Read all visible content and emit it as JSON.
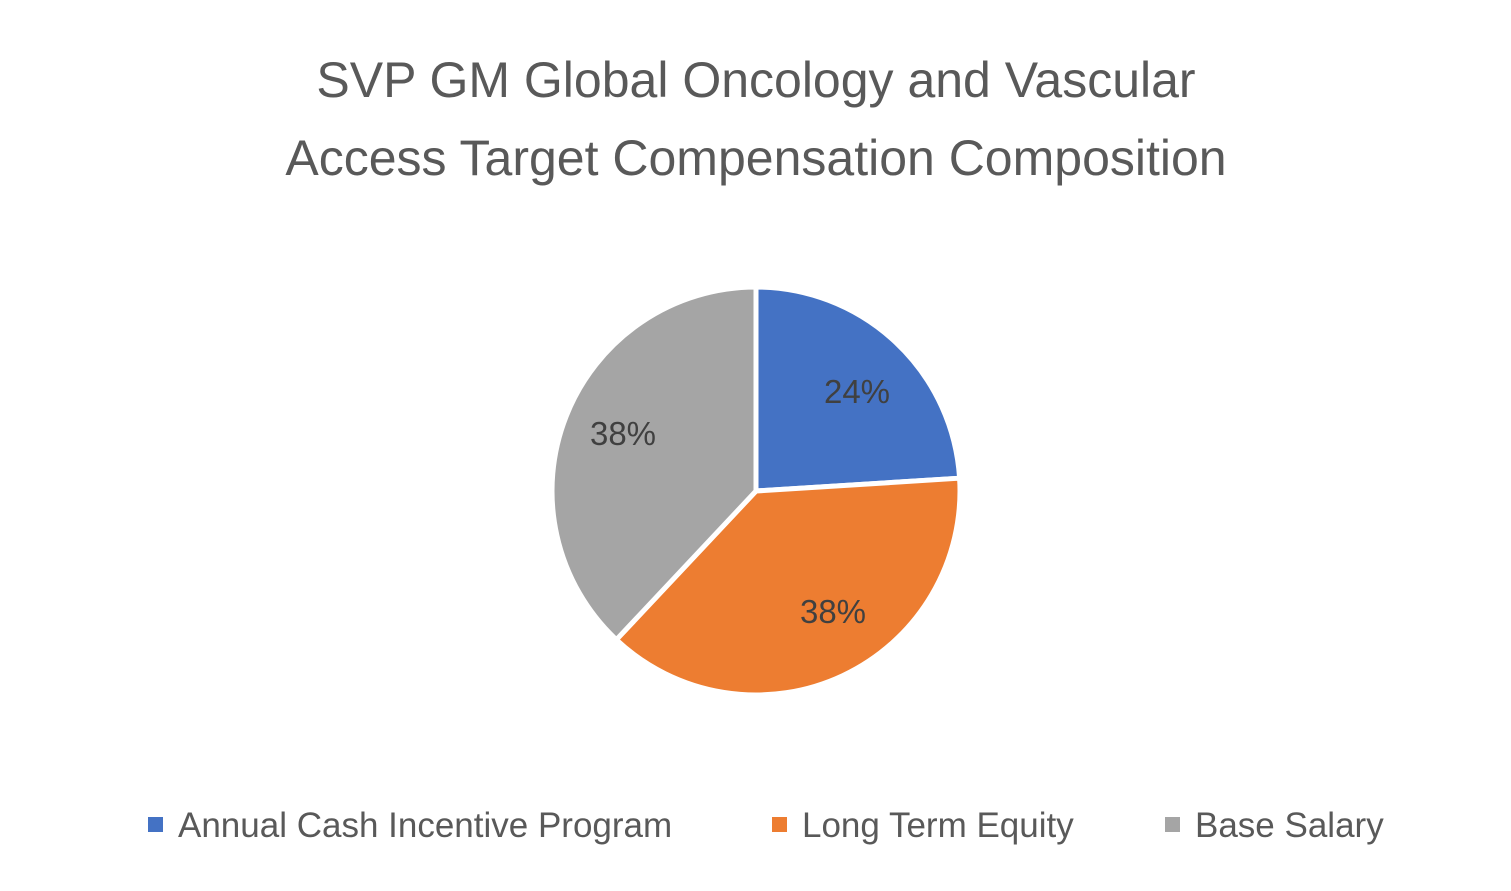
{
  "chart_data": {
    "type": "pie",
    "title": "SVP GM Global Oncology and Vascular Access Target Compensation Composition",
    "title_lines": [
      "SVP GM Global Oncology and Vascular",
      "Access Target Compensation Composition"
    ],
    "categories": [
      "Annual Cash Incentive Program",
      "Long Term Equity",
      "Base Salary"
    ],
    "values": [
      24,
      38,
      38
    ],
    "data_labels": [
      "24%",
      "38%",
      "38%"
    ],
    "colors": [
      "#4472C4",
      "#ED7D31",
      "#A5A5A5"
    ],
    "legend_position": "bottom"
  }
}
